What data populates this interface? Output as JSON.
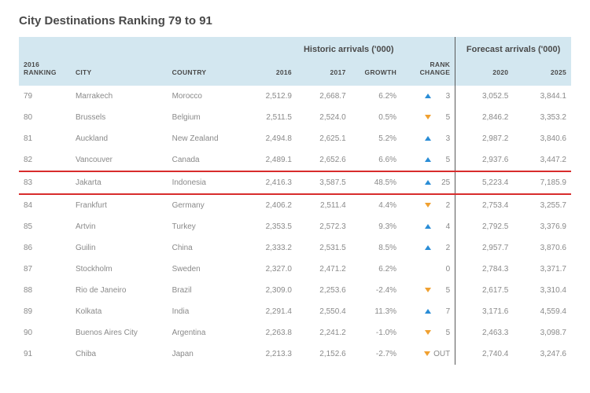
{
  "title": "City Destinations Ranking 79 to 91",
  "headers": {
    "group_historic": "Historic arrivals ('000)",
    "group_forecast": "Forecast arrivals ('000)",
    "ranking": "2016 RANKING",
    "city": "CITY",
    "country": "COUNTRY",
    "y2016": "2016",
    "y2017": "2017",
    "growth": "GROWTH",
    "rank_change": "RANK CHANGE",
    "y2020": "2020",
    "y2025": "2025"
  },
  "colors": {
    "header_bg": "#d3e7f0",
    "highlight_border": "#d82c2c",
    "up_triangle": "#2a8dd6",
    "down_triangle": "#f0a030",
    "text_body": "#8a8a8a",
    "text_header": "#4a4a4a"
  },
  "highlight_rank": 83,
  "rows": [
    {
      "rank": "79",
      "city": "Marrakech",
      "country": "Morocco",
      "y2016": "2,512.9",
      "y2017": "2,668.7",
      "growth": "6.2%",
      "dir": "up",
      "change": "3",
      "y2020": "3,052.5",
      "y2025": "3,844.1"
    },
    {
      "rank": "80",
      "city": "Brussels",
      "country": "Belgium",
      "y2016": "2,511.5",
      "y2017": "2,524.0",
      "growth": "0.5%",
      "dir": "down",
      "change": "5",
      "y2020": "2,846.2",
      "y2025": "3,353.2"
    },
    {
      "rank": "81",
      "city": "Auckland",
      "country": "New Zealand",
      "y2016": "2,494.8",
      "y2017": "2,625.1",
      "growth": "5.2%",
      "dir": "up",
      "change": "3",
      "y2020": "2,987.2",
      "y2025": "3,840.6"
    },
    {
      "rank": "82",
      "city": "Vancouver",
      "country": "Canada",
      "y2016": "2,489.1",
      "y2017": "2,652.6",
      "growth": "6.6%",
      "dir": "up",
      "change": "5",
      "y2020": "2,937.6",
      "y2025": "3,447.2"
    },
    {
      "rank": "83",
      "city": "Jakarta",
      "country": "Indonesia",
      "y2016": "2,416.3",
      "y2017": "3,587.5",
      "growth": "48.5%",
      "dir": "up",
      "change": "25",
      "y2020": "5,223.4",
      "y2025": "7,185.9"
    },
    {
      "rank": "84",
      "city": "Frankfurt",
      "country": "Germany",
      "y2016": "2,406.2",
      "y2017": "2,511.4",
      "growth": "4.4%",
      "dir": "down",
      "change": "2",
      "y2020": "2,753.4",
      "y2025": "3,255.7"
    },
    {
      "rank": "85",
      "city": "Artvin",
      "country": "Turkey",
      "y2016": "2,353.5",
      "y2017": "2,572.3",
      "growth": "9.3%",
      "dir": "up",
      "change": "4",
      "y2020": "2,792.5",
      "y2025": "3,376.9"
    },
    {
      "rank": "86",
      "city": "Guilin",
      "country": "China",
      "y2016": "2,333.2",
      "y2017": "2,531.5",
      "growth": "8.5%",
      "dir": "up",
      "change": "2",
      "y2020": "2,957.7",
      "y2025": "3,870.6"
    },
    {
      "rank": "87",
      "city": "Stockholm",
      "country": "Sweden",
      "y2016": "2,327.0",
      "y2017": "2,471.2",
      "growth": "6.2%",
      "dir": "none",
      "change": "0",
      "y2020": "2,784.3",
      "y2025": "3,371.7"
    },
    {
      "rank": "88",
      "city": "Rio de Janeiro",
      "country": "Brazil",
      "y2016": "2,309.0",
      "y2017": "2,253.6",
      "growth": "-2.4%",
      "dir": "down",
      "change": "5",
      "y2020": "2,617.5",
      "y2025": "3,310.4"
    },
    {
      "rank": "89",
      "city": "Kolkata",
      "country": "India",
      "y2016": "2,291.4",
      "y2017": "2,550.4",
      "growth": "11.3%",
      "dir": "up",
      "change": "7",
      "y2020": "3,171.6",
      "y2025": "4,559.4"
    },
    {
      "rank": "90",
      "city": "Buenos Aires City",
      "country": "Argentina",
      "y2016": "2,263.8",
      "y2017": "2,241.2",
      "growth": "-1.0%",
      "dir": "down",
      "change": "5",
      "y2020": "2,463.3",
      "y2025": "3,098.7"
    },
    {
      "rank": "91",
      "city": "Chiba",
      "country": "Japan",
      "y2016": "2,213.3",
      "y2017": "2,152.6",
      "growth": "-2.7%",
      "dir": "down",
      "change": "OUT",
      "y2020": "2,740.4",
      "y2025": "3,247.6"
    }
  ]
}
